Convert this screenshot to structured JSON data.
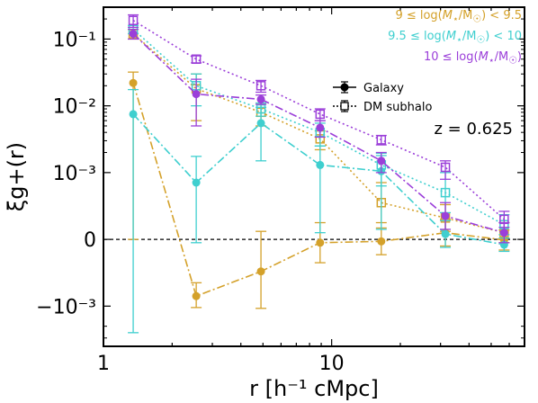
{
  "chart_data": {
    "type": "line",
    "xlabel": "r [h⁻¹ cMpc]",
    "ylabel": "ξg+(r)",
    "xscale": "log",
    "yscale": "symlog",
    "symlog_linthresh": 0.001,
    "xlim": [
      1,
      70
    ],
    "ylim": [
      -0.004,
      0.3
    ],
    "x_ticks": [
      {
        "value": 1,
        "label": "1"
      },
      {
        "value": 10,
        "label": "10"
      }
    ],
    "y_ticks": [
      {
        "value": 0.1,
        "label": "10⁻¹"
      },
      {
        "value": 0.01,
        "label": "10⁻²"
      },
      {
        "value": 0.001,
        "label": "10⁻³"
      },
      {
        "value": 0,
        "label": "0"
      },
      {
        "value": -0.001,
        "label": "−10⁻³"
      }
    ],
    "zero_line": true,
    "annotation": "z = 0.625",
    "legend_placement": "top-right",
    "style_legend": [
      {
        "label": "Galaxy",
        "marker": "filled-circle",
        "line": "dashdot"
      },
      {
        "label": "DM subhalo",
        "marker": "open-square",
        "line": "dotted"
      }
    ],
    "x": [
      1.35,
      2.55,
      4.9,
      8.9,
      16.5,
      31.5,
      57
    ],
    "series": [
      {
        "name": "9 ≤ log(M⋆/M☉) < 9.5",
        "color": "#d4a12a",
        "kind": "galaxy",
        "values": [
          0.022,
          -0.00085,
          -0.00048,
          -5e-05,
          -3e-05,
          0.0001,
          -1e-05
        ],
        "err_lo": [
          0.022,
          0.0002,
          0.0006,
          0.0003,
          0.0002,
          0.0002,
          0.00015
        ],
        "err_hi": [
          0.01,
          0.0002,
          0.0006,
          0.0003,
          0.0002,
          0.0002,
          0.00015
        ]
      },
      {
        "name": "9 ≤ log(M⋆/M☉) < 9.5",
        "color": "#d4a12a",
        "kind": "subhalo",
        "values": [
          0.12,
          0.018,
          0.008,
          0.0032,
          0.00055,
          0.00032,
          0.0001
        ],
        "err_lo": [
          0.02,
          0.012,
          0.003,
          0.001,
          0.0003,
          0.0002,
          0.00015
        ],
        "err_hi": [
          0.02,
          0.012,
          0.003,
          0.001,
          0.0003,
          0.0002,
          0.00015
        ]
      },
      {
        "name": "9.5 ≤ log(M⋆/M☉) < 10",
        "color": "#3fcfcf",
        "kind": "galaxy",
        "values": [
          0.0075,
          0.00085,
          0.0055,
          0.0013,
          0.00105,
          8e-05,
          -8e-05
        ],
        "err_lo": [
          0.01,
          0.0009,
          0.004,
          0.0012,
          0.0009,
          0.0002,
          0.0001
        ],
        "err_hi": [
          0.01,
          0.0009,
          0.004,
          0.0012,
          0.0009,
          0.0002,
          0.0001
        ]
      },
      {
        "name": "9.5 ≤ log(M⋆/M☉) < 10",
        "color": "#3fcfcf",
        "kind": "subhalo",
        "values": [
          0.14,
          0.02,
          0.009,
          0.004,
          0.0013,
          0.0007,
          0.00022
        ],
        "err_lo": [
          0.02,
          0.01,
          0.002,
          0.0015,
          0.0005,
          0.0003,
          0.00015
        ],
        "err_hi": [
          0.02,
          0.01,
          0.002,
          0.0015,
          0.0005,
          0.0003,
          0.00015
        ]
      },
      {
        "name": "10 ≤ log(M⋆/M☉)",
        "color": "#9b3fd9",
        "kind": "galaxy",
        "values": [
          0.12,
          0.015,
          0.0125,
          0.0047,
          0.0015,
          0.00035,
          0.0001
        ],
        "err_lo": [
          0.02,
          0.01,
          0.002,
          0.0013,
          0.0005,
          0.0002,
          0.00015
        ],
        "err_hi": [
          0.02,
          0.01,
          0.002,
          0.0013,
          0.0005,
          0.0002,
          0.00015
        ]
      },
      {
        "name": "10 ≤ log(M⋆/M☉)",
        "color": "#9b3fd9",
        "kind": "subhalo",
        "values": [
          0.19,
          0.05,
          0.02,
          0.0075,
          0.0031,
          0.0012,
          0.0003
        ],
        "err_lo": [
          0.04,
          0.006,
          0.004,
          0.0015,
          0.0005,
          0.0003,
          0.00012
        ],
        "err_hi": [
          0.04,
          0.006,
          0.004,
          0.0015,
          0.0005,
          0.0003,
          0.00012
        ]
      }
    ],
    "legend_entries": [
      {
        "html": "9 ≤ log(<i>M</i><sub>⋆</sub>/M<sub>☉</sub>) &lt; 9.5",
        "color": "#d4a12a"
      },
      {
        "html": "9.5 ≤ log(<i>M</i><sub>⋆</sub>/M<sub>☉</sub>) &lt; 10",
        "color": "#3fcfcf"
      },
      {
        "html": "10 ≤ log(<i>M</i><sub>⋆</sub>/M<sub>☉</sub>)",
        "color": "#9b3fd9"
      }
    ]
  }
}
